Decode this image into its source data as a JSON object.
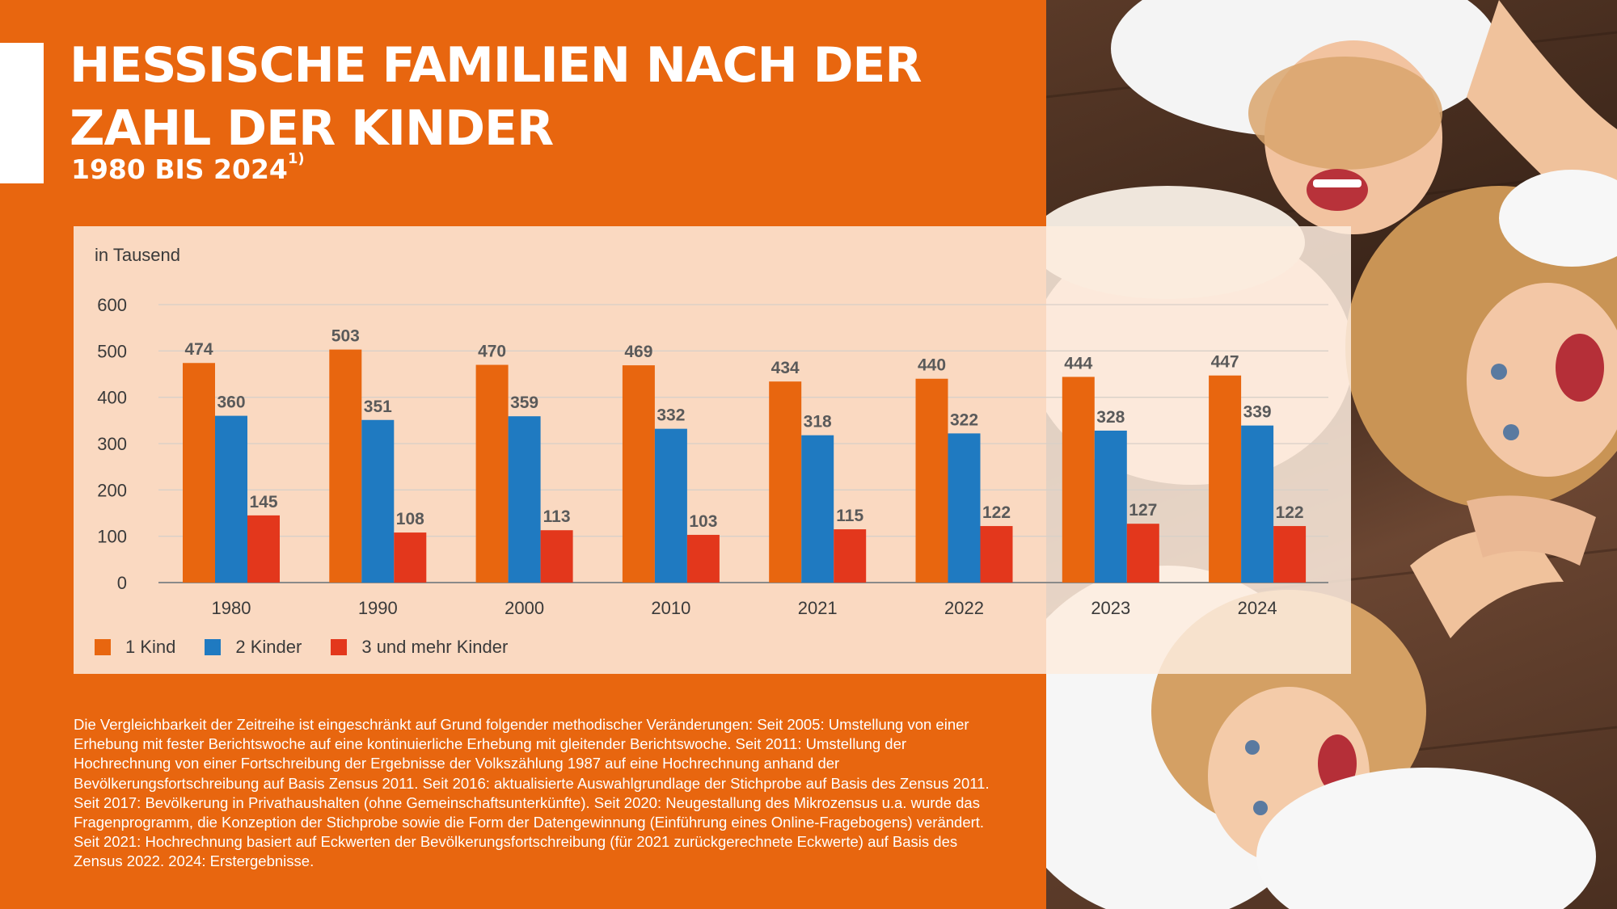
{
  "header": {
    "title": "HESSISCHE FAMILIEN NACH DER ZAHL DER KINDER",
    "subtitle": "1980 BIS 2024",
    "subtitle_footnote_mark": "1)"
  },
  "chart_data": {
    "type": "bar",
    "unit_label": "in Tausend",
    "categories": [
      "1980",
      "1990",
      "2000",
      "2010",
      "2021",
      "2022",
      "2023",
      "2024"
    ],
    "series": [
      {
        "name": "1 Kind",
        "color": "#e8660f",
        "values": [
          474,
          503,
          470,
          469,
          434,
          440,
          444,
          447
        ]
      },
      {
        "name": "2 Kinder",
        "color": "#1f7ac1",
        "values": [
          360,
          351,
          359,
          332,
          318,
          322,
          328,
          339
        ]
      },
      {
        "name": "3 und mehr Kinder",
        "color": "#e3371c",
        "values": [
          145,
          108,
          113,
          103,
          115,
          122,
          127,
          122
        ]
      }
    ],
    "ylim": [
      0,
      600
    ],
    "yticks": [
      0,
      100,
      200,
      300,
      400,
      500,
      600
    ],
    "ytick_labels": [
      "0",
      "100",
      "200",
      "300",
      "400",
      "500",
      "600"
    ],
    "grid": true,
    "legend_position": "bottom-left",
    "data_labels": true
  },
  "footnote": "Die Vergleichbarkeit der Zeitreihe ist eingeschränkt auf Grund folgender methodischer Veränderungen: Seit 2005: Umstellung von einer Erhebung mit fester Berichtswoche auf eine kontinuierliche Erhebung mit gleitender Berichtswoche. Seit 2011: Umstellung der Hochrechnung von einer Fortschreibung der Ergebnisse der Volkszählung 1987 auf eine Hochrechnung anhand der Bevölkerungsfortschreibung auf Basis Zensus 2011. Seit 2016: aktualisierte Auswahlgrundlage der Stichprobe auf Basis des Zensus 2011. Seit 2017: Bevölkerung in Privathaushalten (ohne Gemeinschaftsunterkünfte). Seit 2020: Neugestallung des Mikrozensus u.a. wurde das Fragenprogramm, die Konzeption der Stichprobe sowie die Form der Datengewinnung (Einführung eines Online-Fragebogens) verändert. Seit 2021: Hochrechnung basiert auf Eckwerten der Bevölkerungsfortschreibung (für 2021 zurückgerechnete Eckwerte) auf Basis des Zensus 2022. 2024: Erstergebnisse.",
  "photo": {
    "description_icon": "laughing-children-photo",
    "background_color": "#4a2f20"
  }
}
